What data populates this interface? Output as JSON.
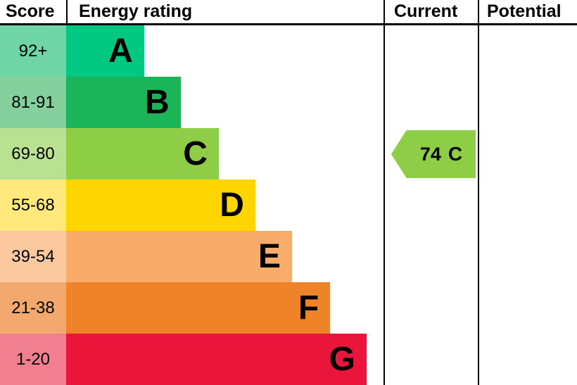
{
  "header": {
    "score": "Score",
    "energy_rating": "Energy rating",
    "current": "Current",
    "potential": "Potential"
  },
  "bands": [
    {
      "letter": "A",
      "score": "92+",
      "bar_color": "#00c781",
      "score_color": "#6fd4a6",
      "width_pct": 24.5
    },
    {
      "letter": "B",
      "score": "81-91",
      "bar_color": "#1cb458",
      "score_color": "#83d09c",
      "width_pct": 36
    },
    {
      "letter": "C",
      "score": "69-80",
      "bar_color": "#8dce46",
      "score_color": "#b8e192",
      "width_pct": 48
    },
    {
      "letter": "D",
      "score": "55-68",
      "bar_color": "#ffd500",
      "score_color": "#ffe97d",
      "width_pct": 59.5
    },
    {
      "letter": "E",
      "score": "39-54",
      "bar_color": "#f9ab69",
      "score_color": "#fbc99d",
      "width_pct": 71
    },
    {
      "letter": "F",
      "score": "21-38",
      "bar_color": "#ee8329",
      "score_color": "#f3a96e",
      "width_pct": 83
    },
    {
      "letter": "G",
      "score": "1-20",
      "bar_color": "#e9153b",
      "score_color": "#f0808f",
      "width_pct": 94.5
    }
  ],
  "current": {
    "value": "74",
    "band": "C",
    "color": "#8dce46"
  },
  "potential": {
    "value": ""
  },
  "chart_data": {
    "type": "bar",
    "title": "Energy rating",
    "columns": [
      "Score",
      "Energy rating",
      "Current",
      "Potential"
    ],
    "categories": [
      "A",
      "B",
      "C",
      "D",
      "E",
      "F",
      "G"
    ],
    "score_ranges": [
      "92+",
      "81-91",
      "69-80",
      "55-68",
      "39-54",
      "21-38",
      "1-20"
    ],
    "bar_widths_pct": [
      24.5,
      36,
      48,
      59.5,
      71,
      83,
      94.5
    ],
    "colors": [
      "#00c781",
      "#1cb458",
      "#8dce46",
      "#ffd500",
      "#f9ab69",
      "#ee8329",
      "#e9153b"
    ],
    "current": {
      "value": 74,
      "band": "C"
    },
    "potential": null,
    "legend_position": "none",
    "grid": false
  }
}
